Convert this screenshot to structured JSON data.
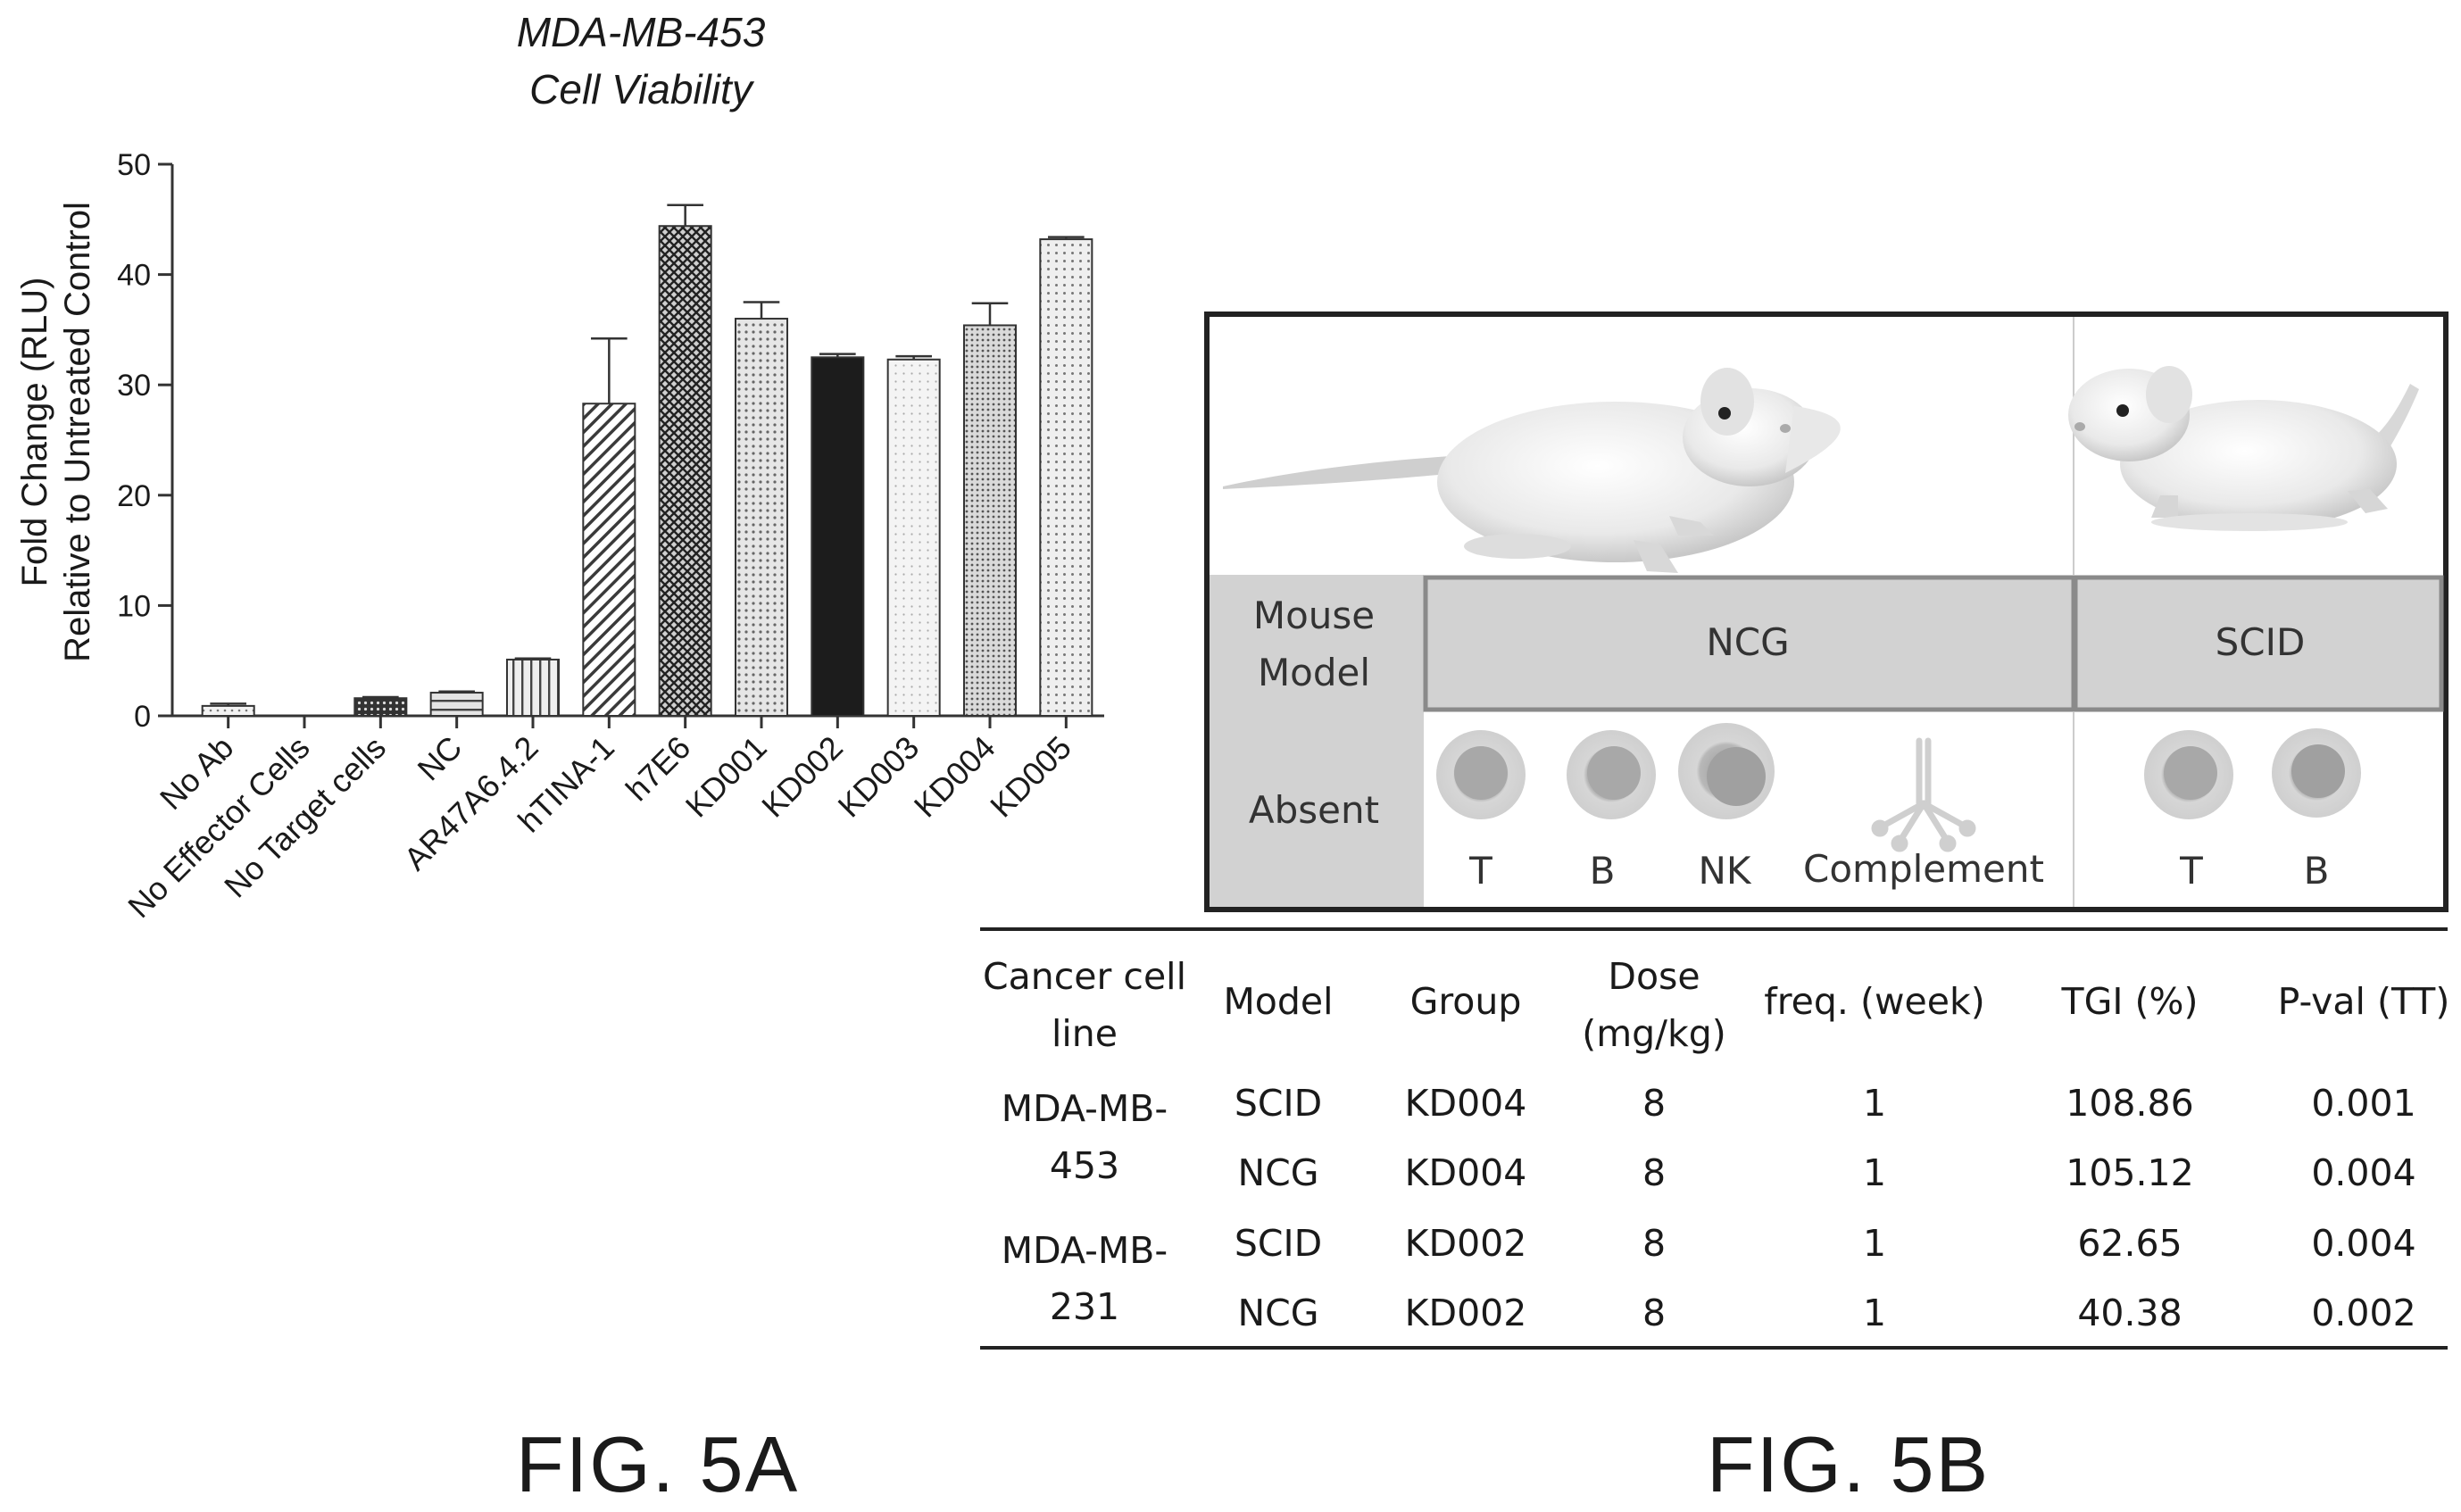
{
  "chart_data": {
    "type": "bar",
    "title": "MDA-MB-453",
    "subtitle": "Cell Viability",
    "ylabel": "Fold Change (RLU)",
    "ylabel2": "Relative to Untreated Control",
    "ylim": [
      0,
      50
    ],
    "yticks": [
      "0",
      "10",
      "20",
      "30",
      "40",
      "50"
    ],
    "categories": [
      "No Ab",
      "No Effector Cells",
      "No Target cells",
      "NC",
      "AR47A6.4.2",
      "hTINA-1",
      "h7E6",
      "KD001",
      "KD002",
      "KD003",
      "KD004",
      "KD005"
    ],
    "values": [
      0.9,
      0,
      1.6,
      2.1,
      5.1,
      28.3,
      44.4,
      36.0,
      32.5,
      32.3,
      35.4,
      43.2
    ],
    "errors": [
      0.2,
      0,
      0.1,
      0.1,
      0.1,
      5.9,
      1.9,
      1.5,
      0.3,
      0.3,
      2.0,
      0.2
    ],
    "patterns": [
      "dots-fine",
      "none",
      "dots-dark",
      "hlines",
      "vlines",
      "diag-down",
      "crosshatch",
      "dots-medium",
      "solid-black",
      "dots-light",
      "dots-dense",
      "dots-sparse"
    ]
  },
  "figure_a_label": "FIG. 5A",
  "figure_b_label": "FIG. 5B",
  "diagram": {
    "row1_label_line1": "Mouse",
    "row1_label_line2": "Model",
    "row2_label": "Absent",
    "ncg": "NCG",
    "scid": "SCID",
    "ncg_absent": [
      "T",
      "B",
      "NK",
      "Complement"
    ],
    "scid_absent": [
      "T",
      "B"
    ]
  },
  "table": {
    "headers": [
      [
        "Cancer cell",
        "line"
      ],
      [
        "Model"
      ],
      [
        "Group"
      ],
      [
        "Dose",
        "(mg/kg)"
      ],
      [
        "freq. (week)"
      ],
      [
        "TGI (%)"
      ],
      [
        "P-val (TT)"
      ]
    ],
    "cell_lines": [
      [
        "MDA-MB-",
        "453"
      ],
      [
        "MDA-MB-",
        "231"
      ]
    ],
    "rows": [
      [
        "SCID",
        "KD004",
        "8",
        "1",
        "108.86",
        "0.001"
      ],
      [
        "NCG",
        "KD004",
        "8",
        "1",
        "105.12",
        "0.004"
      ],
      [
        "SCID",
        "KD002",
        "8",
        "1",
        "62.65",
        "0.004"
      ],
      [
        "NCG",
        "KD002",
        "8",
        "1",
        "40.38",
        "0.002"
      ]
    ]
  }
}
